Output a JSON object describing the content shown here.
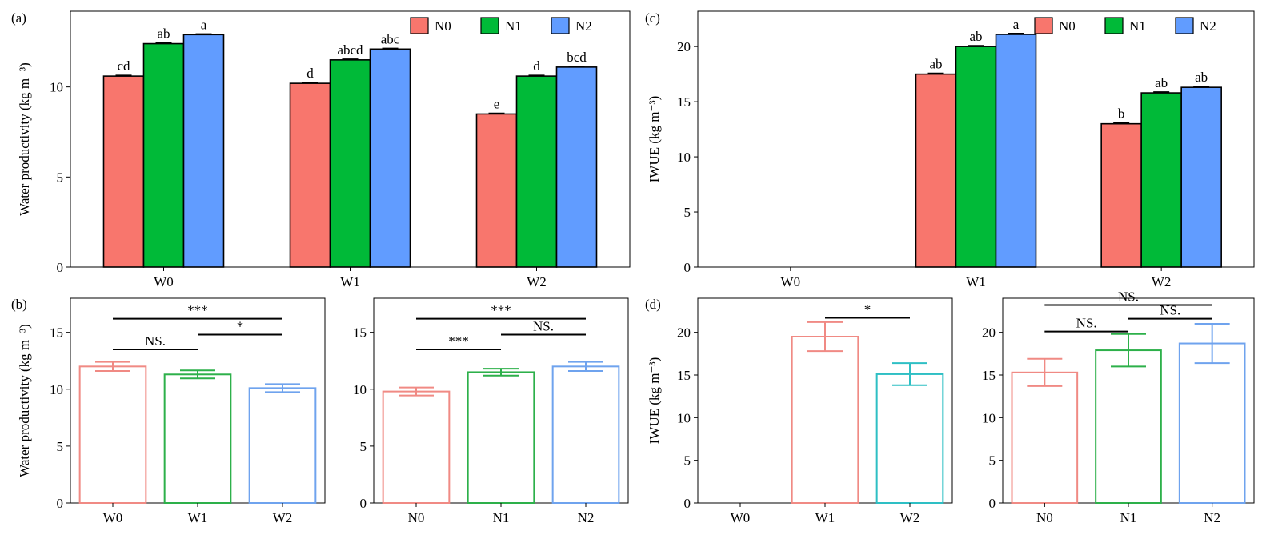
{
  "chart_data": [
    {
      "id": "a",
      "panel_label": "(a)",
      "type": "bar",
      "style": "grouped-filled",
      "categories": [
        "W0",
        "W1",
        "W2"
      ],
      "series": [
        {
          "name": "N0",
          "values": [
            10.6,
            10.2,
            8.5
          ],
          "errors": [
            0.04,
            0.04,
            0.04
          ],
          "letters": [
            "cd",
            "d",
            "e"
          ]
        },
        {
          "name": "N1",
          "values": [
            12.4,
            11.5,
            10.6
          ],
          "errors": [
            0.04,
            0.04,
            0.04
          ],
          "letters": [
            "ab",
            "abcd",
            "d"
          ]
        },
        {
          "name": "N2",
          "values": [
            12.9,
            12.1,
            11.1
          ],
          "errors": [
            0.04,
            0.04,
            0.04
          ],
          "letters": [
            "a",
            "abc",
            "bcd"
          ]
        }
      ],
      "xlabel": "",
      "ylabel": "Water productivity (kg m⁻³)",
      "ylim": [
        0,
        14.2
      ],
      "yticks": [
        0,
        5,
        10
      ],
      "legend": "top-right",
      "grid": false
    },
    {
      "id": "b1",
      "panel_label": "(b)",
      "type": "bar",
      "style": "hollow",
      "categories": [
        "W0",
        "W1",
        "W2"
      ],
      "values": [
        12.0,
        11.3,
        10.1
      ],
      "errors": [
        0.4,
        0.35,
        0.35
      ],
      "colors": [
        "#F08A84",
        "#2DB04A",
        "#6FA3EE"
      ],
      "xlabel": "",
      "ylabel": "Water productivity (kg m⁻³)",
      "ylim": [
        0,
        18
      ],
      "yticks": [
        0,
        5,
        10,
        15
      ],
      "comparisons": [
        {
          "from": 0,
          "to": 2,
          "level": 16.2,
          "label": "***"
        },
        {
          "from": 0,
          "to": 1,
          "level": 13.5,
          "label": "NS."
        },
        {
          "from": 1,
          "to": 2,
          "level": 14.8,
          "label": "*"
        }
      ],
      "grid": false
    },
    {
      "id": "b2",
      "panel_label": "",
      "type": "bar",
      "style": "hollow",
      "categories": [
        "N0",
        "N1",
        "N2"
      ],
      "values": [
        9.8,
        11.5,
        12.0
      ],
      "errors": [
        0.35,
        0.3,
        0.4
      ],
      "colors": [
        "#F08A84",
        "#2DB04A",
        "#6FA3EE"
      ],
      "xlabel": "",
      "ylabel": "",
      "ylim": [
        0,
        18
      ],
      "yticks": [
        0,
        5,
        10,
        15
      ],
      "comparisons": [
        {
          "from": 0,
          "to": 2,
          "level": 16.2,
          "label": "***"
        },
        {
          "from": 0,
          "to": 1,
          "level": 13.5,
          "label": "***"
        },
        {
          "from": 1,
          "to": 2,
          "level": 14.8,
          "label": "NS."
        }
      ],
      "grid": false
    },
    {
      "id": "c",
      "panel_label": "(c)",
      "type": "bar",
      "style": "grouped-filled",
      "categories": [
        "W0",
        "W1",
        "W2"
      ],
      "series": [
        {
          "name": "N0",
          "values": [
            null,
            17.5,
            13.0
          ],
          "errors": [
            0,
            0.08,
            0.08
          ],
          "letters": [
            "",
            "ab",
            "b"
          ]
        },
        {
          "name": "N1",
          "values": [
            null,
            20.0,
            15.8
          ],
          "errors": [
            0,
            0.08,
            0.08
          ],
          "letters": [
            "",
            "ab",
            "ab"
          ]
        },
        {
          "name": "N2",
          "values": [
            null,
            21.1,
            16.3
          ],
          "errors": [
            0,
            0.08,
            0.08
          ],
          "letters": [
            "",
            "a",
            "ab"
          ]
        }
      ],
      "xlabel": "",
      "ylabel": "IWUE (kg m⁻³)",
      "ylim": [
        0,
        23.2
      ],
      "yticks": [
        0,
        5,
        10,
        15,
        20
      ],
      "legend": "top-right",
      "grid": false
    },
    {
      "id": "d1",
      "panel_label": "(d)",
      "type": "bar",
      "style": "hollow",
      "categories": [
        "W0",
        "W1",
        "W2"
      ],
      "values": [
        null,
        19.5,
        15.1
      ],
      "errors": [
        0,
        1.7,
        1.3
      ],
      "colors": [
        "#F08A84",
        "#F08A84",
        "#2EBFC4"
      ],
      "xlabel": "",
      "ylabel": "IWUE (kg m⁻³)",
      "ylim": [
        0,
        24
      ],
      "yticks": [
        0,
        5,
        10,
        15,
        20
      ],
      "comparisons": [
        {
          "from": 1,
          "to": 2,
          "level": 21.7,
          "label": "*"
        }
      ],
      "grid": false
    },
    {
      "id": "d2",
      "panel_label": "",
      "type": "bar",
      "style": "hollow",
      "categories": [
        "N0",
        "N1",
        "N2"
      ],
      "values": [
        15.3,
        17.9,
        18.7
      ],
      "errors": [
        1.6,
        1.9,
        2.3
      ],
      "colors": [
        "#F08A84",
        "#2DB04A",
        "#6FA3EE"
      ],
      "xlabel": "",
      "ylabel": "",
      "ylim": [
        0,
        24
      ],
      "yticks": [
        0,
        5,
        10,
        15,
        20
      ],
      "comparisons": [
        {
          "from": 0,
          "to": 2,
          "level": 23.2,
          "label": "NS."
        },
        {
          "from": 0,
          "to": 1,
          "level": 20.1,
          "label": "NS."
        },
        {
          "from": 1,
          "to": 2,
          "level": 21.6,
          "label": "NS."
        }
      ],
      "grid": false
    }
  ],
  "colors": {
    "N0": "#F8766D",
    "N1": "#00BA38",
    "N2": "#619CFF",
    "axis": "#000000"
  }
}
